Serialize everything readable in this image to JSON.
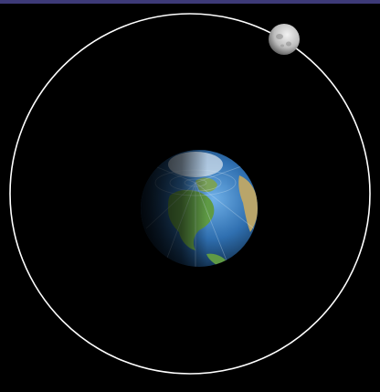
{
  "scene": {
    "description_tag": "earth-moon-orbit",
    "colors": {
      "frame_top": "#3d3a78",
      "background": "#000000",
      "orbit": "#ffffff",
      "ocean": "#2f6fb0",
      "land": "#4e8a3c",
      "moon": "#cfcfcf"
    }
  }
}
